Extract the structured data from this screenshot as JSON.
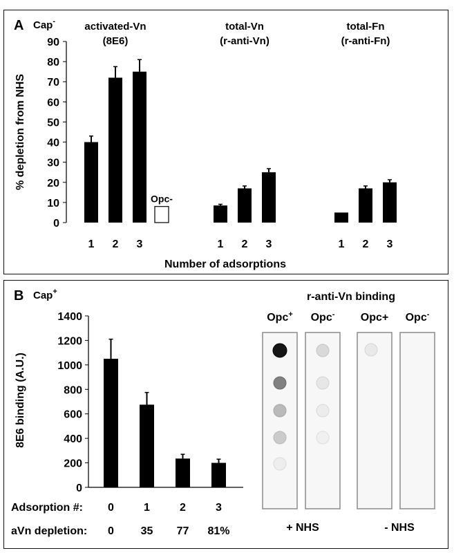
{
  "chart_data": [
    {
      "type": "bar",
      "panel_letter": "A",
      "condition": "Cap",
      "condition_superscript": "-",
      "ylabel": "% depletion from NHS",
      "xlabel": "Number of adsorptions",
      "ylim": [
        0,
        90
      ],
      "yticks": [
        0,
        10,
        20,
        30,
        40,
        50,
        60,
        70,
        80,
        90
      ],
      "groups": [
        {
          "title_lines": [
            "activated-Vn",
            "(8E6)"
          ],
          "categories": [
            "1",
            "2",
            "3"
          ],
          "values": [
            40,
            72,
            75
          ],
          "errors": [
            3,
            5.5,
            6
          ],
          "extra_bar": {
            "label": "Opc-",
            "value": 8,
            "style": "open"
          }
        },
        {
          "title_lines": [
            "total-Vn",
            "(r-anti-Vn)"
          ],
          "categories": [
            "1",
            "2",
            "3"
          ],
          "values": [
            8.5,
            17,
            25
          ],
          "errors": [
            0.6,
            1.2,
            1.8
          ]
        },
        {
          "title_lines": [
            "total-Fn",
            "(r-anti-Fn)"
          ],
          "categories": [
            "1",
            "2",
            "3"
          ],
          "values": [
            5,
            17,
            20
          ],
          "errors": [
            0,
            1.2,
            1.3
          ]
        }
      ]
    },
    {
      "type": "bar",
      "panel_letter": "B",
      "condition": "Cap",
      "condition_superscript": "+",
      "ylabel": "8E6 binding (A.U.)",
      "ylim": [
        0,
        1400
      ],
      "yticks": [
        0,
        200,
        400,
        600,
        800,
        1000,
        1200,
        1400
      ],
      "categories": [
        "0",
        "1",
        "2",
        "3"
      ],
      "values": [
        1050,
        675,
        235,
        200
      ],
      "errors": [
        160,
        100,
        35,
        30
      ],
      "row_labels": [
        {
          "label": "Adsorption #:",
          "values": [
            "0",
            "1",
            "2",
            "3"
          ]
        },
        {
          "label": "aVn depletion:",
          "values": [
            "0",
            "35",
            "77",
            "81%"
          ]
        }
      ]
    }
  ],
  "dot_blot": {
    "title": "r-anti-Vn binding",
    "lanes": [
      {
        "base": "Opc",
        "sup": "+",
        "intensities": [
          0.95,
          0.5,
          0.25,
          0.18,
          0.03
        ]
      },
      {
        "base": "Opc",
        "sup": "-",
        "intensities": [
          0.12,
          0.06,
          0.04,
          0.02,
          0.0
        ]
      },
      {
        "base": "Opc+",
        "sup": "",
        "intensities": [
          0.05,
          0.0,
          0.0,
          0.0,
          0.0
        ]
      },
      {
        "base": "Opc",
        "sup": "-",
        "intensities": [
          0.0,
          0.0,
          0.0,
          0.0,
          0.0
        ]
      }
    ],
    "group_labels": [
      "+ NHS",
      "- NHS"
    ]
  },
  "colors": {
    "bar": "#000000",
    "open_bar": "#ffffff",
    "strip_border": "#8a8a8a",
    "strip_fill": "#f7f7f7"
  }
}
